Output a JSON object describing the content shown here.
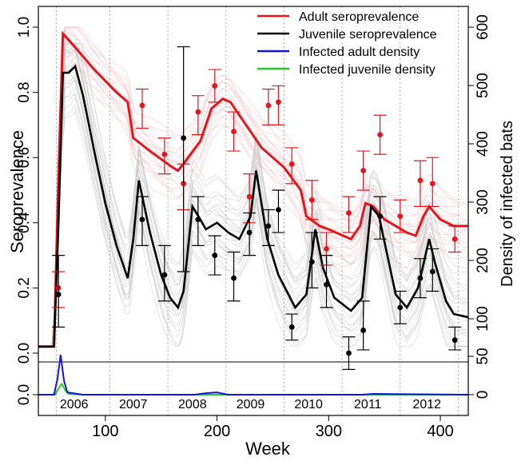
{
  "chart_data": {
    "type": "line",
    "xlabel": "Week",
    "ylabel": "Seroprevalence",
    "y2label": "Density of infected bats",
    "xlim": [
      40,
      425
    ],
    "ylim": [
      0,
      1.0
    ],
    "y2lim": [
      0,
      600
    ],
    "x_ticks": [
      100,
      200,
      300,
      400
    ],
    "y_ticks": [
      0.0,
      0.2,
      0.4,
      0.6,
      0.8,
      1.0
    ],
    "y_tick_labels": [
      "0.0",
      "0.2",
      "0.4",
      "0.6",
      "0.8",
      "1.0"
    ],
    "y2_ticks": [
      100,
      200,
      300,
      400,
      500,
      600
    ],
    "y2_inset_ticks": [
      0,
      50
    ],
    "lower_panel_tick": "0.0",
    "years": [
      {
        "label": "2006",
        "x": 72
      },
      {
        "label": "2007",
        "x": 125
      },
      {
        "label": "2008",
        "x": 178
      },
      {
        "label": "2009",
        "x": 230
      },
      {
        "label": "2010",
        "x": 282
      },
      {
        "label": "2011",
        "x": 335
      },
      {
        "label": "2012",
        "x": 388
      }
    ],
    "year_boundaries": [
      56,
      104,
      156,
      208,
      260,
      312,
      364,
      416
    ],
    "legend_position": "top-right",
    "series": [
      {
        "name": "Adult seroprevalence",
        "color": "#e8141c",
        "x": [
          40,
          54,
          58,
          62,
          70,
          90,
          110,
          120,
          125,
          140,
          160,
          165,
          172,
          185,
          195,
          205,
          212,
          220,
          240,
          260,
          275,
          280,
          292,
          300,
          320,
          328,
          333,
          340,
          350,
          370,
          378,
          385,
          390,
          400,
          412,
          425
        ],
        "y": [
          0.02,
          0.02,
          0.55,
          0.98,
          0.95,
          0.87,
          0.8,
          0.77,
          0.66,
          0.62,
          0.57,
          0.56,
          0.59,
          0.65,
          0.75,
          0.78,
          0.77,
          0.73,
          0.63,
          0.57,
          0.5,
          0.42,
          0.39,
          0.38,
          0.35,
          0.39,
          0.46,
          0.45,
          0.41,
          0.37,
          0.36,
          0.42,
          0.45,
          0.41,
          0.39,
          0.39
        ]
      },
      {
        "name": "Juvenile seroprevalence",
        "color": "#000000",
        "x": [
          40,
          54,
          58,
          62,
          67,
          73,
          80,
          90,
          100,
          110,
          120,
          125,
          130,
          140,
          150,
          158,
          165,
          170,
          178,
          185,
          190,
          200,
          210,
          220,
          230,
          235,
          245,
          255,
          270,
          280,
          288,
          295,
          305,
          320,
          330,
          338,
          345,
          360,
          370,
          380,
          390,
          395,
          405,
          412,
          425
        ],
        "y": [
          0.02,
          0.02,
          0.4,
          0.86,
          0.86,
          0.88,
          0.79,
          0.62,
          0.46,
          0.33,
          0.23,
          0.35,
          0.53,
          0.37,
          0.24,
          0.17,
          0.14,
          0.19,
          0.45,
          0.41,
          0.38,
          0.4,
          0.37,
          0.35,
          0.42,
          0.56,
          0.35,
          0.24,
          0.14,
          0.18,
          0.38,
          0.26,
          0.17,
          0.13,
          0.17,
          0.45,
          0.42,
          0.18,
          0.14,
          0.2,
          0.35,
          0.28,
          0.16,
          0.12,
          0.11
        ]
      },
      {
        "name": "Infected adult density",
        "color": "#1414e6",
        "x": [
          40,
          54,
          57,
          60,
          63,
          66,
          80,
          180,
          190,
          200,
          210,
          330,
          340,
          425
        ],
        "y": [
          0,
          0,
          20,
          52,
          18,
          3,
          0,
          0,
          2,
          3,
          0,
          0,
          1,
          0
        ]
      },
      {
        "name": "Infected juvenile density",
        "color": "#28c828",
        "x": [
          40,
          55,
          58,
          61,
          64,
          67,
          80,
          425
        ],
        "y": [
          0,
          0,
          8,
          14,
          6,
          1,
          0,
          0
        ]
      }
    ],
    "observations_adult": [
      {
        "x": 58,
        "y": 0.2,
        "lo": 0.14,
        "hi": 0.25
      },
      {
        "x": 133,
        "y": 0.76,
        "lo": 0.69,
        "hi": 0.81
      },
      {
        "x": 153,
        "y": 0.61,
        "lo": 0.55,
        "hi": 0.66
      },
      {
        "x": 170,
        "y": 0.52,
        "lo": 0.44,
        "hi": 0.58
      },
      {
        "x": 183,
        "y": 0.74,
        "lo": 0.67,
        "hi": 0.79
      },
      {
        "x": 198,
        "y": 0.82,
        "lo": 0.77,
        "hi": 0.87
      },
      {
        "x": 215,
        "y": 0.68,
        "lo": 0.62,
        "hi": 0.74
      },
      {
        "x": 229,
        "y": 0.48,
        "lo": 0.4,
        "hi": 0.55
      },
      {
        "x": 246,
        "y": 0.76,
        "lo": 0.7,
        "hi": 0.81
      },
      {
        "x": 255,
        "y": 0.77,
        "lo": 0.7,
        "hi": 0.82
      },
      {
        "x": 267,
        "y": 0.58,
        "lo": 0.52,
        "hi": 0.63
      },
      {
        "x": 285,
        "y": 0.47,
        "lo": 0.41,
        "hi": 0.53
      },
      {
        "x": 298,
        "y": 0.32,
        "lo": 0.27,
        "hi": 0.37
      },
      {
        "x": 318,
        "y": 0.43,
        "lo": 0.37,
        "hi": 0.48
      },
      {
        "x": 331,
        "y": 0.56,
        "lo": 0.5,
        "hi": 0.62
      },
      {
        "x": 346,
        "y": 0.67,
        "lo": 0.61,
        "hi": 0.73
      },
      {
        "x": 364,
        "y": 0.42,
        "lo": 0.37,
        "hi": 0.47
      },
      {
        "x": 382,
        "y": 0.53,
        "lo": 0.45,
        "hi": 0.59
      },
      {
        "x": 393,
        "y": 0.52,
        "lo": 0.45,
        "hi": 0.6
      },
      {
        "x": 413,
        "y": 0.35,
        "lo": 0.31,
        "hi": 0.39
      }
    ],
    "observations_juvenile": [
      {
        "x": 58,
        "y": 0.18,
        "lo": 0.08,
        "hi": 0.3
      },
      {
        "x": 133,
        "y": 0.41,
        "lo": 0.33,
        "hi": 0.48
      },
      {
        "x": 153,
        "y": 0.24,
        "lo": 0.16,
        "hi": 0.33
      },
      {
        "x": 170,
        "y": 0.66,
        "lo": 0.25,
        "hi": 0.94
      },
      {
        "x": 183,
        "y": 0.41,
        "lo": 0.33,
        "hi": 0.48
      },
      {
        "x": 198,
        "y": 0.3,
        "lo": 0.24,
        "hi": 0.36
      },
      {
        "x": 215,
        "y": 0.23,
        "lo": 0.16,
        "hi": 0.31
      },
      {
        "x": 229,
        "y": 0.37,
        "lo": 0.3,
        "hi": 0.43
      },
      {
        "x": 246,
        "y": 0.39,
        "lo": 0.33,
        "hi": 0.44
      },
      {
        "x": 255,
        "y": 0.44,
        "lo": 0.37,
        "hi": 0.5
      },
      {
        "x": 267,
        "y": 0.08,
        "lo": 0.04,
        "hi": 0.12
      },
      {
        "x": 285,
        "y": 0.28,
        "lo": 0.2,
        "hi": 0.37
      },
      {
        "x": 298,
        "y": 0.21,
        "lo": 0.14,
        "hi": 0.3
      },
      {
        "x": 318,
        "y": 0.0,
        "lo": -0.05,
        "hi": 0.05
      },
      {
        "x": 331,
        "y": 0.07,
        "lo": 0.01,
        "hi": 0.16
      },
      {
        "x": 346,
        "y": 0.42,
        "lo": 0.35,
        "hi": 0.48
      },
      {
        "x": 364,
        "y": 0.14,
        "lo": 0.09,
        "hi": 0.19
      },
      {
        "x": 382,
        "y": 0.23,
        "lo": 0.17,
        "hi": 0.29
      },
      {
        "x": 393,
        "y": 0.25,
        "lo": 0.19,
        "hi": 0.32
      },
      {
        "x": 413,
        "y": 0.04,
        "lo": 0.01,
        "hi": 0.08
      }
    ]
  }
}
